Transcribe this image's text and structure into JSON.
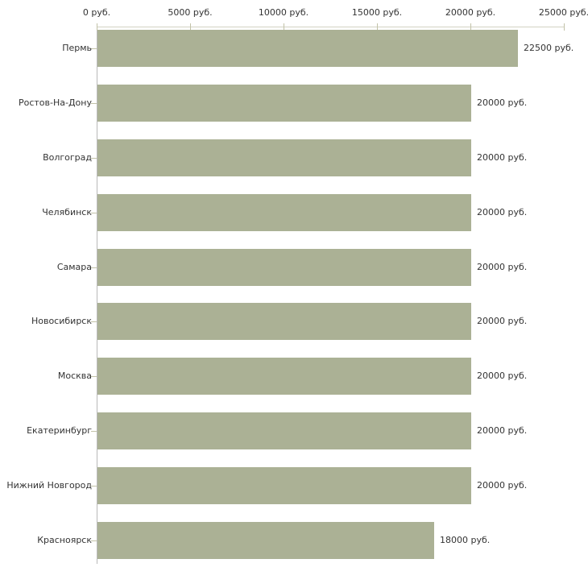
{
  "chart_data": {
    "type": "bar",
    "orientation": "horizontal",
    "title": "",
    "xlabel": "",
    "ylabel": "",
    "unit": "руб.",
    "categories": [
      "Пермь",
      "Ростов-На-Дону",
      "Волгоград",
      "Челябинск",
      "Самара",
      "Новосибирск",
      "Москва",
      "Екатеринбург",
      "Нижний Новгород",
      "Красноярск"
    ],
    "values": [
      22500,
      20000,
      20000,
      20000,
      20000,
      20000,
      20000,
      20000,
      20000,
      18000
    ],
    "value_labels": [
      "22500 руб.",
      "20000 руб.",
      "20000 руб.",
      "20000 руб.",
      "20000 руб.",
      "20000 руб.",
      "20000 руб.",
      "20000 руб.",
      "20000 руб.",
      "18000 руб."
    ],
    "x_ticks": [
      0,
      5000,
      10000,
      15000,
      20000,
      25000
    ],
    "x_tick_labels": [
      "0 руб.",
      "5000 руб.",
      "10000 руб.",
      "15000 руб.",
      "20000 руб.",
      "25000 руб."
    ],
    "xlim": [
      0,
      25000
    ],
    "grid": false,
    "legend": false,
    "colors": {
      "bar": "#abb195",
      "axis_line_h": "#d2d2c2",
      "axis_line_v": "#b9b9b9",
      "tick": "#c2c2a8",
      "text": "#333333",
      "background": "#ffffff"
    }
  }
}
